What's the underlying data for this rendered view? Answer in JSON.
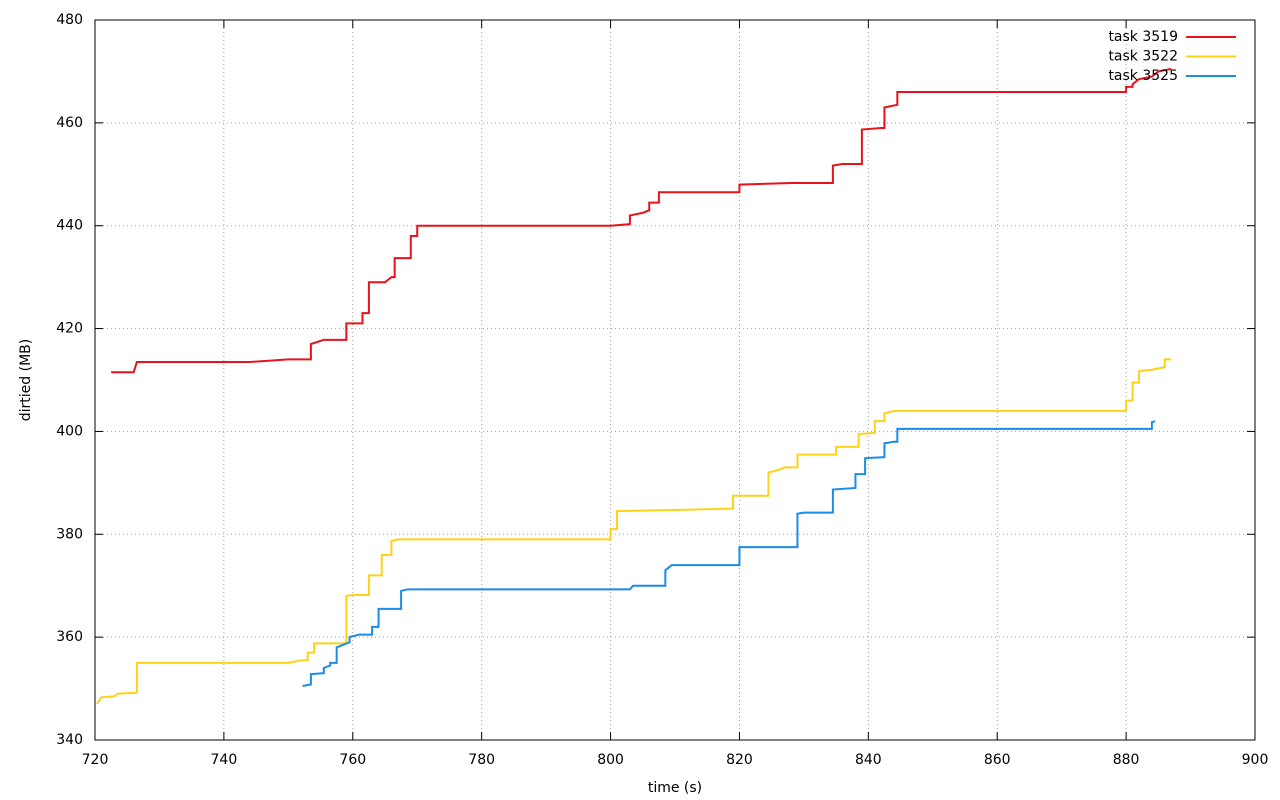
{
  "chart_data": {
    "type": "line",
    "xlabel": "time (s)",
    "ylabel": "dirtied (MB)",
    "xlim": [
      720,
      900
    ],
    "ylim": [
      340,
      480
    ],
    "xticks": [
      720,
      740,
      760,
      780,
      800,
      820,
      840,
      860,
      880,
      900
    ],
    "yticks": [
      340,
      360,
      380,
      400,
      420,
      440,
      460,
      480
    ],
    "grid": true,
    "legend": "top-right",
    "series": [
      {
        "name": "task 3519",
        "color": "#e8131a",
        "x": [
          722.5,
          726,
          726.5,
          744,
          750,
          753.5,
          753.5,
          755.5,
          759,
          759,
          761.5,
          761.5,
          762.5,
          762.5,
          765,
          766,
          766.5,
          766.5,
          769,
          769,
          770,
          770,
          800,
          803,
          803,
          805,
          806,
          806,
          807.5,
          807.5,
          820,
          820,
          828,
          834.5,
          834.5,
          836,
          839,
          839,
          842,
          842.5,
          842.5,
          844.5,
          844.5,
          880,
          880,
          881,
          881,
          882,
          884,
          885,
          887
        ],
        "values": [
          411.5,
          411.5,
          413.5,
          413.5,
          414,
          414,
          417,
          417.8,
          417.8,
          421,
          421,
          423,
          423,
          429,
          429,
          430,
          430,
          433.7,
          433.7,
          438,
          438,
          440,
          440,
          440.3,
          442,
          442.5,
          443,
          444.5,
          444.5,
          446.5,
          446.5,
          448,
          448.3,
          448.3,
          451.7,
          452,
          452,
          458.7,
          459,
          459,
          463,
          463.5,
          466,
          466,
          467,
          467,
          467.5,
          468.5,
          469,
          470,
          470.5
        ]
      },
      {
        "name": "task 3522",
        "color": "#ffd21a",
        "x": [
          720.3,
          721,
          723,
          723.5,
          726.5,
          726.5,
          750,
          752,
          753,
          753,
          754,
          754,
          759,
          759,
          760,
          762.5,
          762.5,
          764.5,
          764.5,
          766,
          766,
          767,
          800,
          800,
          801,
          801,
          809,
          819,
          819,
          824.5,
          824.5,
          826,
          827,
          829,
          829,
          835,
          835,
          838.5,
          838.5,
          841,
          841,
          842.5,
          842.5,
          844,
          880,
          880,
          881,
          881,
          882,
          882,
          884,
          886,
          886,
          887
        ],
        "values": [
          347,
          348.3,
          348.5,
          349,
          349.2,
          355,
          355,
          355.5,
          355.5,
          357,
          357,
          358.8,
          358.8,
          368,
          368.2,
          368.2,
          372,
          372,
          376,
          376,
          378.7,
          379,
          379,
          381,
          381,
          384.5,
          384.7,
          385,
          387.5,
          387.5,
          392,
          392.5,
          393,
          393,
          395.5,
          395.5,
          397,
          397,
          399.5,
          399.7,
          402,
          402,
          403.5,
          404,
          404,
          406,
          406,
          409.5,
          409.5,
          411.7,
          412,
          412.5,
          414,
          414
        ]
      },
      {
        "name": "task 3525",
        "color": "#1a8ce6",
        "x": [
          752.2,
          753.5,
          753.5,
          755.5,
          755.5,
          756.5,
          756.5,
          757.5,
          757.5,
          758.5,
          759.5,
          759.5,
          761,
          763,
          763,
          764,
          764,
          767.5,
          767.5,
          768.5,
          803,
          803.5,
          808.5,
          808.5,
          809.5,
          820,
          820,
          829,
          829,
          830,
          834.5,
          834.5,
          838,
          838,
          839.5,
          839.5,
          842.5,
          842.5,
          844,
          844.5,
          844.5,
          884,
          884,
          884.5
        ],
        "values": [
          350.5,
          350.8,
          352.8,
          353,
          354,
          354.5,
          355,
          355,
          358,
          358.5,
          359,
          360,
          360.5,
          360.5,
          362,
          362,
          365.5,
          365.5,
          369,
          369.3,
          369.3,
          370,
          370,
          373,
          374,
          374,
          377.5,
          377.5,
          384,
          384.2,
          384.2,
          388.7,
          389,
          391.7,
          391.7,
          394.8,
          395,
          397.7,
          398,
          398,
          400.5,
          400.5,
          401.8,
          402
        ]
      }
    ]
  }
}
